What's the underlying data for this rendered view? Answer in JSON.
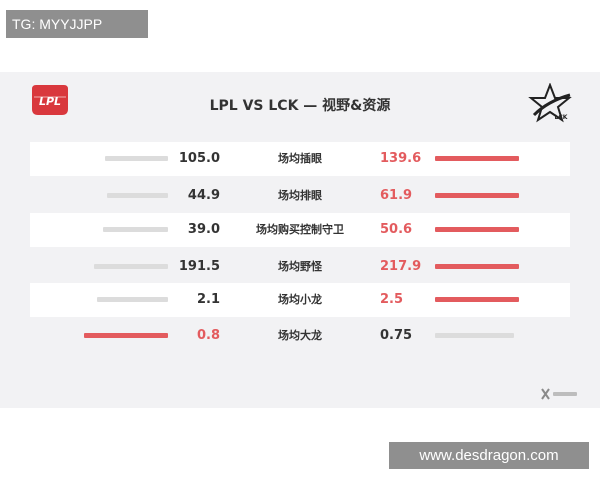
{
  "watermark_top": "TG: MYYJJPP",
  "watermark_bottom": "www.desdragon.com",
  "colors": {
    "win": "#e35b5e",
    "lose": "#dcdcdc",
    "text": "#333333",
    "panel": "#f2f2f4"
  },
  "logos": {
    "left": "lpl-logo",
    "right": "lck-logo"
  },
  "chart_data": {
    "type": "bar",
    "title": "LPL VS LCK — 视野&资源",
    "series": [
      {
        "name": "LPL",
        "values": [
          105.0,
          44.9,
          39.0,
          191.5,
          2.1,
          0.8
        ]
      },
      {
        "name": "LCK",
        "values": [
          139.6,
          61.9,
          50.6,
          217.9,
          2.5,
          0.75
        ]
      }
    ],
    "categories": [
      "场均插眼",
      "场均排眼",
      "场均购买控制守卫",
      "场均野怪",
      "场均小龙",
      "场均大龙"
    ],
    "rows": [
      {
        "category": "场均插眼",
        "left": "105.0",
        "right": "139.6",
        "winner": "right"
      },
      {
        "category": "场均排眼",
        "left": "44.9",
        "right": "61.9",
        "winner": "right"
      },
      {
        "category": "场均购买控制守卫",
        "left": "39.0",
        "right": "50.6",
        "winner": "right"
      },
      {
        "category": "场均野怪",
        "left": "191.5",
        "right": "217.9",
        "winner": "right"
      },
      {
        "category": "场均小龙",
        "left": "2.1",
        "right": "2.5",
        "winner": "right"
      },
      {
        "category": "场均大龙",
        "left": "0.8",
        "right": "0.75",
        "winner": "left"
      }
    ]
  }
}
